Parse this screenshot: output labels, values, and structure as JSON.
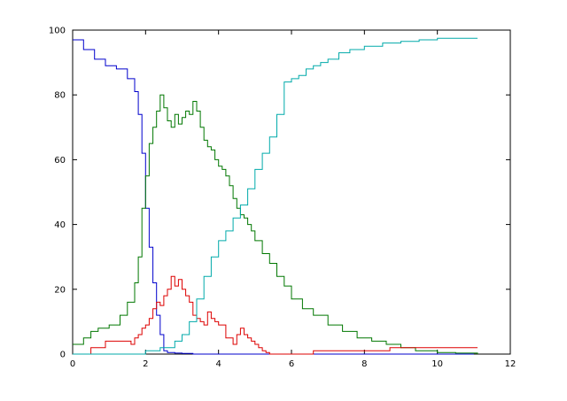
{
  "chart_data": {
    "type": "line",
    "title": "",
    "xlabel": "",
    "ylabel": "",
    "xlim": [
      0,
      12
    ],
    "ylim": [
      0,
      100
    ],
    "xticks": [
      0,
      2,
      4,
      6,
      8,
      10,
      12
    ],
    "yticks": [
      0,
      20,
      40,
      60,
      80,
      100
    ],
    "grid": false,
    "legend": "none",
    "series": [
      {
        "color": "#0000cc",
        "x": [
          0,
          0.3,
          0.6,
          0.9,
          1.2,
          1.5,
          1.7,
          1.8,
          1.9,
          2.0,
          2.1,
          2.2,
          2.3,
          2.4,
          2.5,
          2.6,
          2.8,
          3.0,
          3.3,
          3.8,
          5,
          7,
          11
        ],
        "y": [
          97,
          94,
          91,
          89,
          88,
          85,
          81,
          74,
          62,
          45,
          33,
          22,
          12,
          6,
          1,
          0.5,
          0.3,
          0.2,
          0,
          0,
          0,
          0,
          0
        ]
      },
      {
        "color": "#007700",
        "x": [
          0,
          0.3,
          0.5,
          0.7,
          1.0,
          1.3,
          1.5,
          1.7,
          1.8,
          1.9,
          2.0,
          2.1,
          2.2,
          2.3,
          2.4,
          2.5,
          2.6,
          2.7,
          2.8,
          2.9,
          3.0,
          3.1,
          3.2,
          3.3,
          3.4,
          3.5,
          3.6,
          3.7,
          3.8,
          3.9,
          4.0,
          4.1,
          4.2,
          4.3,
          4.4,
          4.5,
          4.6,
          4.7,
          4.8,
          4.9,
          5.0,
          5.2,
          5.4,
          5.6,
          5.8,
          6.0,
          6.3,
          6.6,
          7.0,
          7.4,
          7.8,
          8.2,
          8.6,
          9.0,
          9.4,
          10.0,
          10.5,
          11.1
        ],
        "y": [
          3,
          5,
          7,
          8,
          9,
          12,
          16,
          22,
          30,
          45,
          55,
          65,
          70,
          75,
          80,
          76,
          72,
          70,
          74,
          71,
          73,
          75,
          74,
          78,
          75,
          70,
          66,
          64,
          63,
          60,
          58,
          57,
          55,
          52,
          48,
          45,
          43,
          42,
          40,
          38,
          35,
          31,
          28,
          24,
          21,
          17,
          14,
          12,
          9,
          7,
          5,
          4,
          3,
          2,
          1,
          0.5,
          0.3,
          0
        ],
        "step": false
      },
      {
        "color": "#dd0000",
        "x": [
          0,
          0.4,
          0.5,
          0.9,
          1.4,
          1.6,
          1.7,
          1.8,
          1.9,
          2.0,
          2.1,
          2.2,
          2.3,
          2.4,
          2.5,
          2.6,
          2.7,
          2.8,
          2.9,
          3.0,
          3.1,
          3.2,
          3.3,
          3.4,
          3.5,
          3.6,
          3.7,
          3.8,
          3.9,
          4.0,
          4.2,
          4.4,
          4.5,
          4.6,
          4.7,
          4.8,
          4.9,
          5.0,
          5.1,
          5.2,
          5.3,
          5.4,
          6.3,
          6.6,
          8.7,
          11.1
        ],
        "y": [
          0,
          0,
          2,
          4,
          4,
          3,
          5,
          6,
          8,
          9,
          11,
          14,
          16,
          15,
          18,
          20,
          24,
          21,
          23,
          20,
          18,
          16,
          12,
          11,
          10,
          9,
          13,
          11,
          10,
          9,
          5,
          3,
          6,
          8,
          6,
          5,
          4,
          3,
          2,
          1,
          0.5,
          0,
          0,
          1,
          2,
          2
        ]
      },
      {
        "color": "#00aaaa",
        "x": [
          0,
          1.6,
          2.0,
          2.4,
          2.8,
          3.0,
          3.2,
          3.4,
          3.6,
          3.8,
          4.0,
          4.2,
          4.4,
          4.6,
          4.8,
          5.0,
          5.2,
          5.4,
          5.6,
          5.8,
          6.0,
          6.2,
          6.4,
          6.6,
          6.8,
          7.0,
          7.3,
          7.6,
          8.0,
          8.5,
          9.0,
          9.5,
          10.0,
          11.1
        ],
        "y": [
          0,
          0,
          1,
          2,
          4,
          6,
          10,
          17,
          24,
          30,
          35,
          38,
          42,
          46,
          51,
          57,
          62,
          67,
          74,
          84,
          85,
          86,
          88,
          89,
          90,
          91,
          93,
          94,
          95,
          96,
          96.5,
          97,
          97.5,
          97.5
        ]
      }
    ]
  }
}
